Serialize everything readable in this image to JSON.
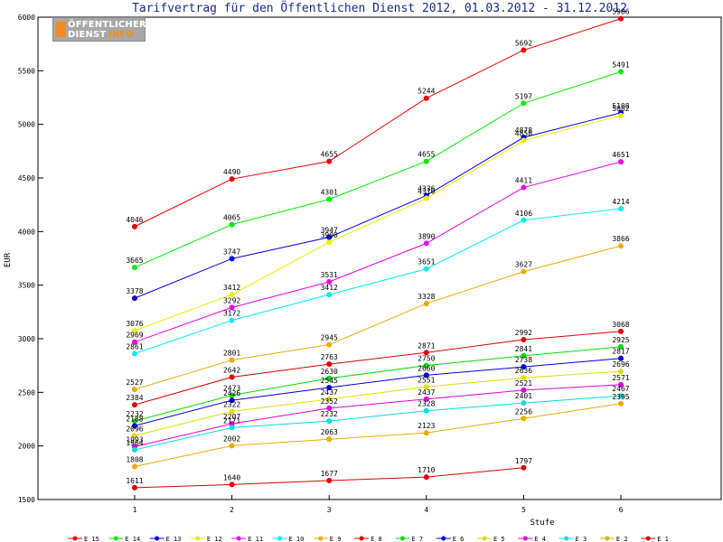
{
  "chart_data": {
    "type": "line",
    "title": "Tarifvertrag für den Öffentlichen Dienst 2012, 01.03.2012 - 31.12.2012",
    "xlabel": "Stufe",
    "ylabel": "EUR",
    "x": [
      1,
      2,
      3,
      4,
      5,
      6
    ],
    "ylim": [
      1500,
      6000
    ],
    "yticks": [
      1500,
      2000,
      2500,
      3000,
      3500,
      4000,
      4500,
      5000,
      5500,
      6000
    ],
    "grid": false,
    "legend": "bottom",
    "series": [
      {
        "name": "E_15",
        "color": "#ee0000",
        "values": [
          4046,
          4490,
          4655,
          5244,
          5692,
          5986
        ]
      },
      {
        "name": "E_14",
        "color": "#00ee00",
        "values": [
          3665,
          4065,
          4301,
          4655,
          5197,
          5491
        ]
      },
      {
        "name": "E_13",
        "color": "#0000ee",
        "values": [
          3378,
          3747,
          3947,
          4336,
          4878,
          5108
        ]
      },
      {
        "name": "E_12",
        "color": "#eeee00",
        "values": [
          3076,
          3412,
          3900,
          4310,
          4850,
          5082
        ]
      },
      {
        "name": "E_11",
        "color": "#ee00ee",
        "values": [
          2969,
          3292,
          3531,
          3890,
          4411,
          4651
        ]
      },
      {
        "name": "E_10",
        "color": "#00eeee",
        "values": [
          2861,
          3172,
          3412,
          3651,
          4106,
          4214
        ]
      },
      {
        "name": "E_9",
        "color": "#eeaa00",
        "values": [
          2527,
          2801,
          2945,
          3328,
          3627,
          3866
        ]
      },
      {
        "name": "E_8",
        "color": "#dd0000",
        "values": [
          2384,
          2642,
          2763,
          2871,
          2992,
          3068
        ]
      },
      {
        "name": "E_7",
        "color": "#00dd00",
        "values": [
          2232,
          2473,
          2630,
          2750,
          2841,
          2925
        ]
      },
      {
        "name": "E_6",
        "color": "#0000dd",
        "values": [
          2188,
          2426,
          2545,
          2660,
          2738,
          2817
        ]
      },
      {
        "name": "E_5",
        "color": "#dddd00",
        "values": [
          2096,
          2322,
          2437,
          2551,
          2636,
          2696
        ]
      },
      {
        "name": "E_4",
        "color": "#dd00dd",
        "values": [
          1993,
          2207,
          2352,
          2437,
          2521,
          2571
        ]
      },
      {
        "name": "E_3",
        "color": "#00dddd",
        "values": [
          1964,
          2171,
          2232,
          2328,
          2401,
          2467
        ]
      },
      {
        "name": "E_2",
        "color": "#eeaa00",
        "values": [
          1808,
          2002,
          2063,
          2123,
          2256,
          2395
        ]
      },
      {
        "name": "E_1",
        "color": "#dd0000",
        "values": [
          1611,
          1640,
          1677,
          1710,
          1797,
          null
        ]
      }
    ]
  },
  "logo": {
    "line1": "ÖFFENTLICHER",
    "line2": "DIENST",
    "line3": ".INFO"
  }
}
